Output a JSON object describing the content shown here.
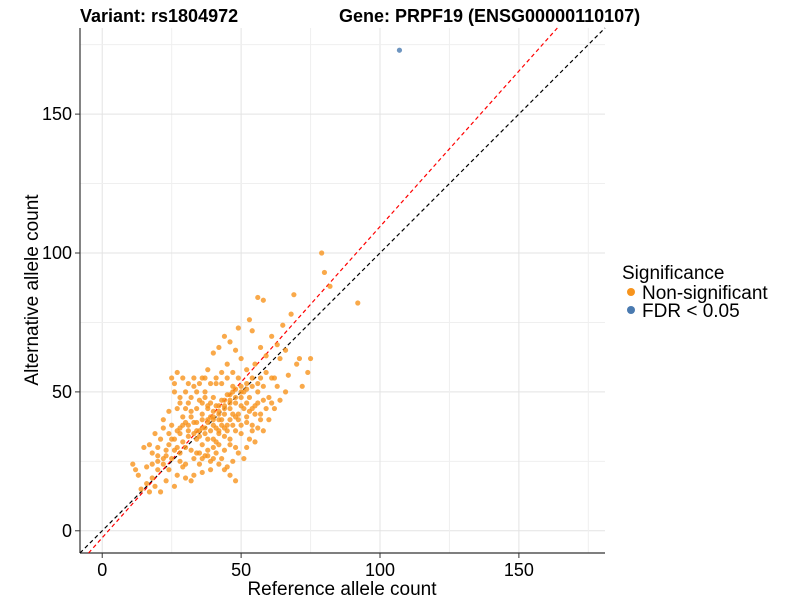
{
  "chart_data": {
    "type": "scatter",
    "title_left": "Variant: rs1804972",
    "title_right": "Gene: PRPF19 (ENSG00000110107)",
    "xlabel": "Reference allele count",
    "ylabel": "Alternative allele count",
    "xlim": [
      -8,
      181
    ],
    "ylim": [
      -8,
      181
    ],
    "x_ticks": [
      0,
      50,
      100,
      150
    ],
    "y_ticks": [
      0,
      50,
      100,
      150
    ],
    "grid": true,
    "legend": {
      "title": "Significance",
      "position": "right",
      "entries": [
        {
          "label": "Non-significant",
          "color": "#F7941D"
        },
        {
          "label": "FDR < 0.05",
          "color": "#4A7AB0"
        }
      ]
    },
    "reference_lines": [
      {
        "name": "identity",
        "slope": 1.0,
        "intercept": 0,
        "color": "#000000",
        "style": "dashed"
      },
      {
        "name": "fit",
        "slope": 1.12,
        "intercept": -2.5,
        "color": "#FF0000",
        "style": "dashed"
      }
    ],
    "series": [
      {
        "name": "Non-significant",
        "color": "#F7941D",
        "points": [
          [
            79,
            100
          ],
          [
            80,
            93
          ],
          [
            82,
            88
          ],
          [
            92,
            82
          ],
          [
            69,
            85
          ],
          [
            56,
            84
          ],
          [
            58,
            83
          ],
          [
            53,
            76
          ],
          [
            68,
            78
          ],
          [
            65,
            74
          ],
          [
            71,
            62
          ],
          [
            75,
            62
          ],
          [
            54,
            72
          ],
          [
            49,
            73
          ],
          [
            61,
            70
          ],
          [
            63,
            67
          ],
          [
            57,
            66
          ],
          [
            66,
            65
          ],
          [
            59,
            63
          ],
          [
            64,
            62
          ],
          [
            70,
            60
          ],
          [
            74,
            57
          ],
          [
            67,
            56
          ],
          [
            72,
            52
          ],
          [
            62,
            55
          ],
          [
            55,
            60
          ],
          [
            52,
            58
          ],
          [
            50,
            62
          ],
          [
            48,
            65
          ],
          [
            46,
            68
          ],
          [
            44,
            70
          ],
          [
            42,
            66
          ],
          [
            40,
            64
          ],
          [
            45,
            60
          ],
          [
            43,
            57
          ],
          [
            38,
            58
          ],
          [
            36,
            55
          ],
          [
            41,
            53
          ],
          [
            47,
            52
          ],
          [
            51,
            50
          ],
          [
            53,
            48
          ],
          [
            56,
            50
          ],
          [
            58,
            52
          ],
          [
            60,
            48
          ],
          [
            55,
            45
          ],
          [
            50,
            45
          ],
          [
            46,
            47
          ],
          [
            44,
            45
          ],
          [
            40,
            48
          ],
          [
            37,
            50
          ],
          [
            35,
            47
          ],
          [
            33,
            52
          ],
          [
            30,
            50
          ],
          [
            26,
            53
          ],
          [
            28,
            48
          ],
          [
            31,
            46
          ],
          [
            34,
            44
          ],
          [
            38,
            45
          ],
          [
            42,
            43
          ],
          [
            47,
            42
          ],
          [
            49,
            40
          ],
          [
            52,
            41
          ],
          [
            54,
            38
          ],
          [
            57,
            42
          ],
          [
            45,
            38
          ],
          [
            43,
            40
          ],
          [
            39,
            41
          ],
          [
            36,
            42
          ],
          [
            32,
            43
          ],
          [
            29,
            41
          ],
          [
            27,
            44
          ],
          [
            24,
            43
          ],
          [
            22,
            40
          ],
          [
            25,
            38
          ],
          [
            28,
            37
          ],
          [
            31,
            38
          ],
          [
            33,
            39
          ],
          [
            35,
            36
          ],
          [
            37,
            37
          ],
          [
            40,
            38
          ],
          [
            42,
            36
          ],
          [
            44,
            34
          ],
          [
            46,
            33
          ],
          [
            48,
            36
          ],
          [
            50,
            35
          ],
          [
            53,
            33
          ],
          [
            41,
            32
          ],
          [
            38,
            33
          ],
          [
            36,
            31
          ],
          [
            34,
            33
          ],
          [
            31,
            34
          ],
          [
            29,
            32
          ],
          [
            27,
            30
          ],
          [
            24,
            31
          ],
          [
            21,
            33
          ],
          [
            19,
            35
          ],
          [
            17,
            31
          ],
          [
            15,
            30
          ],
          [
            18,
            28
          ],
          [
            20,
            27
          ],
          [
            23,
            27
          ],
          [
            25,
            26
          ],
          [
            28,
            25
          ],
          [
            30,
            24
          ],
          [
            33,
            26
          ],
          [
            35,
            28
          ],
          [
            37,
            27
          ],
          [
            39,
            25
          ],
          [
            41,
            28
          ],
          [
            43,
            26
          ],
          [
            45,
            23
          ],
          [
            47,
            25
          ],
          [
            49,
            28
          ],
          [
            51,
            26
          ],
          [
            39,
            22
          ],
          [
            36,
            21
          ],
          [
            33,
            20
          ],
          [
            30,
            19
          ],
          [
            27,
            20
          ],
          [
            24,
            22
          ],
          [
            22,
            24
          ],
          [
            20,
            22
          ],
          [
            18,
            19
          ],
          [
            16,
            17
          ],
          [
            13,
            20
          ],
          [
            12,
            22
          ],
          [
            19,
            16
          ],
          [
            21,
            14
          ],
          [
            14,
            15
          ],
          [
            17,
            14
          ],
          [
            11,
            24
          ],
          [
            23,
            18
          ],
          [
            26,
            16
          ],
          [
            29,
            23
          ],
          [
            32,
            18
          ],
          [
            35,
            24
          ],
          [
            38,
            29
          ],
          [
            40,
            30
          ],
          [
            42,
            31
          ],
          [
            44,
            29
          ],
          [
            46,
            31
          ],
          [
            48,
            30
          ],
          [
            52,
            30
          ],
          [
            55,
            32
          ],
          [
            58,
            36
          ],
          [
            60,
            40
          ],
          [
            62,
            44
          ],
          [
            64,
            47
          ],
          [
            66,
            50
          ],
          [
            63,
            52
          ],
          [
            61,
            55
          ],
          [
            59,
            57
          ],
          [
            57,
            55
          ],
          [
            54,
            55
          ],
          [
            52,
            53
          ],
          [
            49,
            55
          ],
          [
            47,
            57
          ],
          [
            45,
            55
          ],
          [
            43,
            53
          ],
          [
            41,
            55
          ],
          [
            39,
            53
          ],
          [
            37,
            55
          ],
          [
            35,
            53
          ],
          [
            33,
            55
          ],
          [
            31,
            53
          ],
          [
            29,
            55
          ],
          [
            27,
            57
          ],
          [
            25,
            55
          ],
          [
            26,
            50
          ],
          [
            28,
            46
          ],
          [
            30,
            44
          ],
          [
            32,
            41
          ],
          [
            34,
            39
          ],
          [
            36,
            40
          ],
          [
            38,
            39
          ],
          [
            40,
            41
          ],
          [
            42,
            40
          ],
          [
            44,
            42
          ],
          [
            46,
            44
          ],
          [
            48,
            46
          ],
          [
            50,
            48
          ],
          [
            52,
            46
          ],
          [
            54,
            44
          ],
          [
            56,
            46
          ],
          [
            58,
            47
          ],
          [
            34,
            50
          ],
          [
            37,
            48
          ],
          [
            39,
            46
          ],
          [
            41,
            45
          ],
          [
            43,
            47
          ],
          [
            45,
            49
          ],
          [
            47,
            50
          ],
          [
            32,
            48
          ],
          [
            30,
            39
          ],
          [
            28,
            35
          ],
          [
            26,
            33
          ],
          [
            24,
            35
          ],
          [
            22,
            37
          ],
          [
            20,
            30
          ],
          [
            23,
            29
          ],
          [
            25,
            33
          ],
          [
            27,
            36
          ],
          [
            29,
            38
          ],
          [
            31,
            36
          ],
          [
            33,
            35
          ],
          [
            35,
            34
          ],
          [
            37,
            35
          ],
          [
            39,
            36
          ],
          [
            41,
            37
          ],
          [
            43,
            38
          ],
          [
            45,
            36
          ],
          [
            47,
            38
          ],
          [
            49,
            42
          ],
          [
            51,
            44
          ],
          [
            53,
            43
          ],
          [
            55,
            42
          ],
          [
            57,
            40
          ],
          [
            59,
            44
          ],
          [
            61,
            46
          ],
          [
            36,
            46
          ],
          [
            38,
            44
          ],
          [
            40,
            43
          ],
          [
            42,
            45
          ],
          [
            44,
            47
          ],
          [
            46,
            49
          ],
          [
            48,
            51
          ],
          [
            50,
            52
          ],
          [
            30,
            30
          ],
          [
            32,
            29
          ],
          [
            34,
            28
          ],
          [
            36,
            26
          ],
          [
            38,
            27
          ],
          [
            40,
            26
          ],
          [
            42,
            24
          ],
          [
            44,
            22
          ],
          [
            46,
            20
          ],
          [
            48,
            18
          ],
          [
            28,
            28
          ],
          [
            26,
            29
          ],
          [
            22,
            26
          ],
          [
            20,
            25
          ],
          [
            18,
            24
          ],
          [
            16,
            23
          ],
          [
            34,
            36
          ],
          [
            36,
            37
          ],
          [
            40,
            33
          ],
          [
            42,
            35
          ],
          [
            44,
            37
          ],
          [
            46,
            40
          ],
          [
            48,
            41
          ],
          [
            50,
            38
          ],
          [
            52,
            39
          ],
          [
            54,
            36
          ],
          [
            56,
            37
          ],
          [
            38,
            40
          ],
          [
            40,
            40
          ],
          [
            42,
            42
          ],
          [
            44,
            44
          ],
          [
            46,
            46
          ],
          [
            48,
            48
          ],
          [
            50,
            50
          ],
          [
            52,
            51
          ],
          [
            54,
            52
          ],
          [
            56,
            53
          ]
        ]
      },
      {
        "name": "FDR < 0.05",
        "color": "#4A7AB0",
        "points": [
          [
            107,
            173
          ]
        ]
      }
    ]
  }
}
